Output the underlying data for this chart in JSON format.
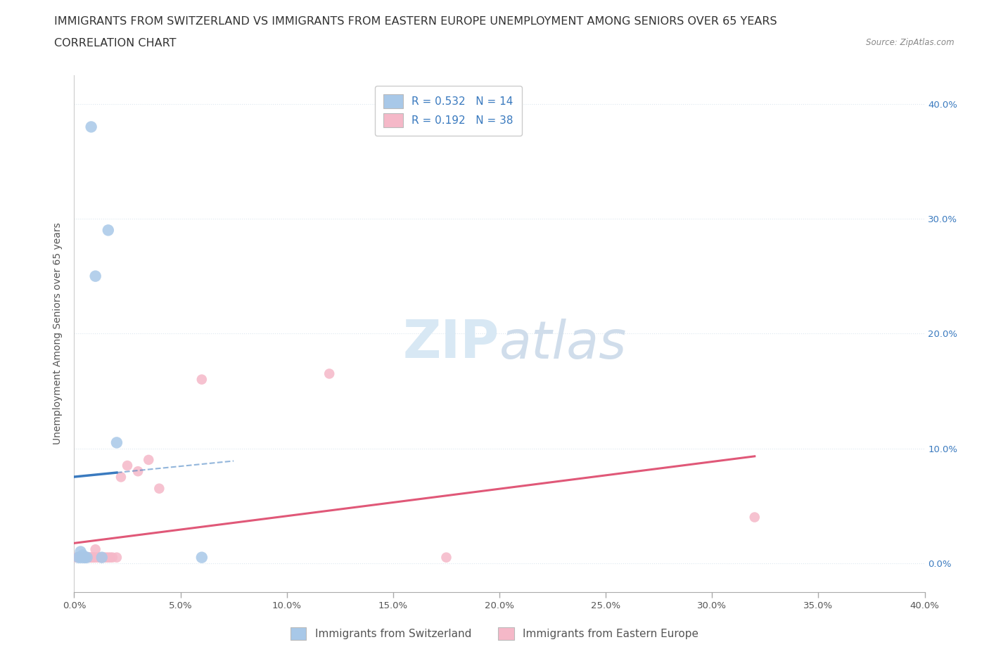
{
  "title_line1": "IMMIGRANTS FROM SWITZERLAND VS IMMIGRANTS FROM EASTERN EUROPE UNEMPLOYMENT AMONG SENIORS OVER 65 YEARS",
  "title_line2": "CORRELATION CHART",
  "source_text": "Source: ZipAtlas.com",
  "xlabel": "Immigrants from Switzerland",
  "ylabel": "Unemployment Among Seniors over 65 years",
  "legend_label1": "Immigrants from Switzerland",
  "legend_label2": "Immigrants from Eastern Europe",
  "R1": 0.532,
  "N1": 14,
  "R2": 0.192,
  "N2": 38,
  "xlim": [
    0.0,
    0.4
  ],
  "ylim": [
    -0.025,
    0.425
  ],
  "xticks": [
    0.0,
    0.05,
    0.1,
    0.15,
    0.2,
    0.25,
    0.3,
    0.35,
    0.4
  ],
  "yticks": [
    0.0,
    0.1,
    0.2,
    0.3,
    0.4
  ],
  "color_swiss": "#a8c8e8",
  "color_swiss_line": "#3a7abf",
  "color_eastern": "#f5b8c8",
  "color_eastern_line": "#e05878",
  "color_title": "#333333",
  "color_axis_labels": "#555555",
  "color_tick_right": "#3a7abf",
  "watermark_color": "#d8e8f4",
  "swiss_x": [
    0.002,
    0.003,
    0.003,
    0.004,
    0.004,
    0.005,
    0.005,
    0.006,
    0.008,
    0.01,
    0.013,
    0.016,
    0.02,
    0.06
  ],
  "swiss_y": [
    0.005,
    0.005,
    0.01,
    0.005,
    0.007,
    0.005,
    0.005,
    0.005,
    0.38,
    0.25,
    0.005,
    0.29,
    0.105,
    0.005
  ],
  "eastern_x": [
    0.001,
    0.002,
    0.002,
    0.003,
    0.003,
    0.004,
    0.004,
    0.005,
    0.005,
    0.005,
    0.006,
    0.006,
    0.007,
    0.007,
    0.008,
    0.008,
    0.009,
    0.009,
    0.01,
    0.01,
    0.011,
    0.012,
    0.013,
    0.014,
    0.015,
    0.016,
    0.017,
    0.018,
    0.02,
    0.022,
    0.025,
    0.03,
    0.035,
    0.04,
    0.06,
    0.12,
    0.175,
    0.32
  ],
  "eastern_y": [
    0.005,
    0.005,
    0.005,
    0.005,
    0.005,
    0.005,
    0.005,
    0.005,
    0.005,
    0.005,
    0.005,
    0.005,
    0.005,
    0.005,
    0.005,
    0.005,
    0.005,
    0.005,
    0.005,
    0.012,
    0.005,
    0.005,
    0.005,
    0.005,
    0.005,
    0.005,
    0.005,
    0.005,
    0.005,
    0.075,
    0.085,
    0.08,
    0.09,
    0.065,
    0.16,
    0.165,
    0.005,
    0.04
  ],
  "background_color": "#ffffff",
  "grid_color": "#dde8f0",
  "title_fontsize": 11.5,
  "subtitle_fontsize": 11.5,
  "axis_label_fontsize": 10,
  "tick_fontsize": 9.5,
  "legend_fontsize": 11
}
